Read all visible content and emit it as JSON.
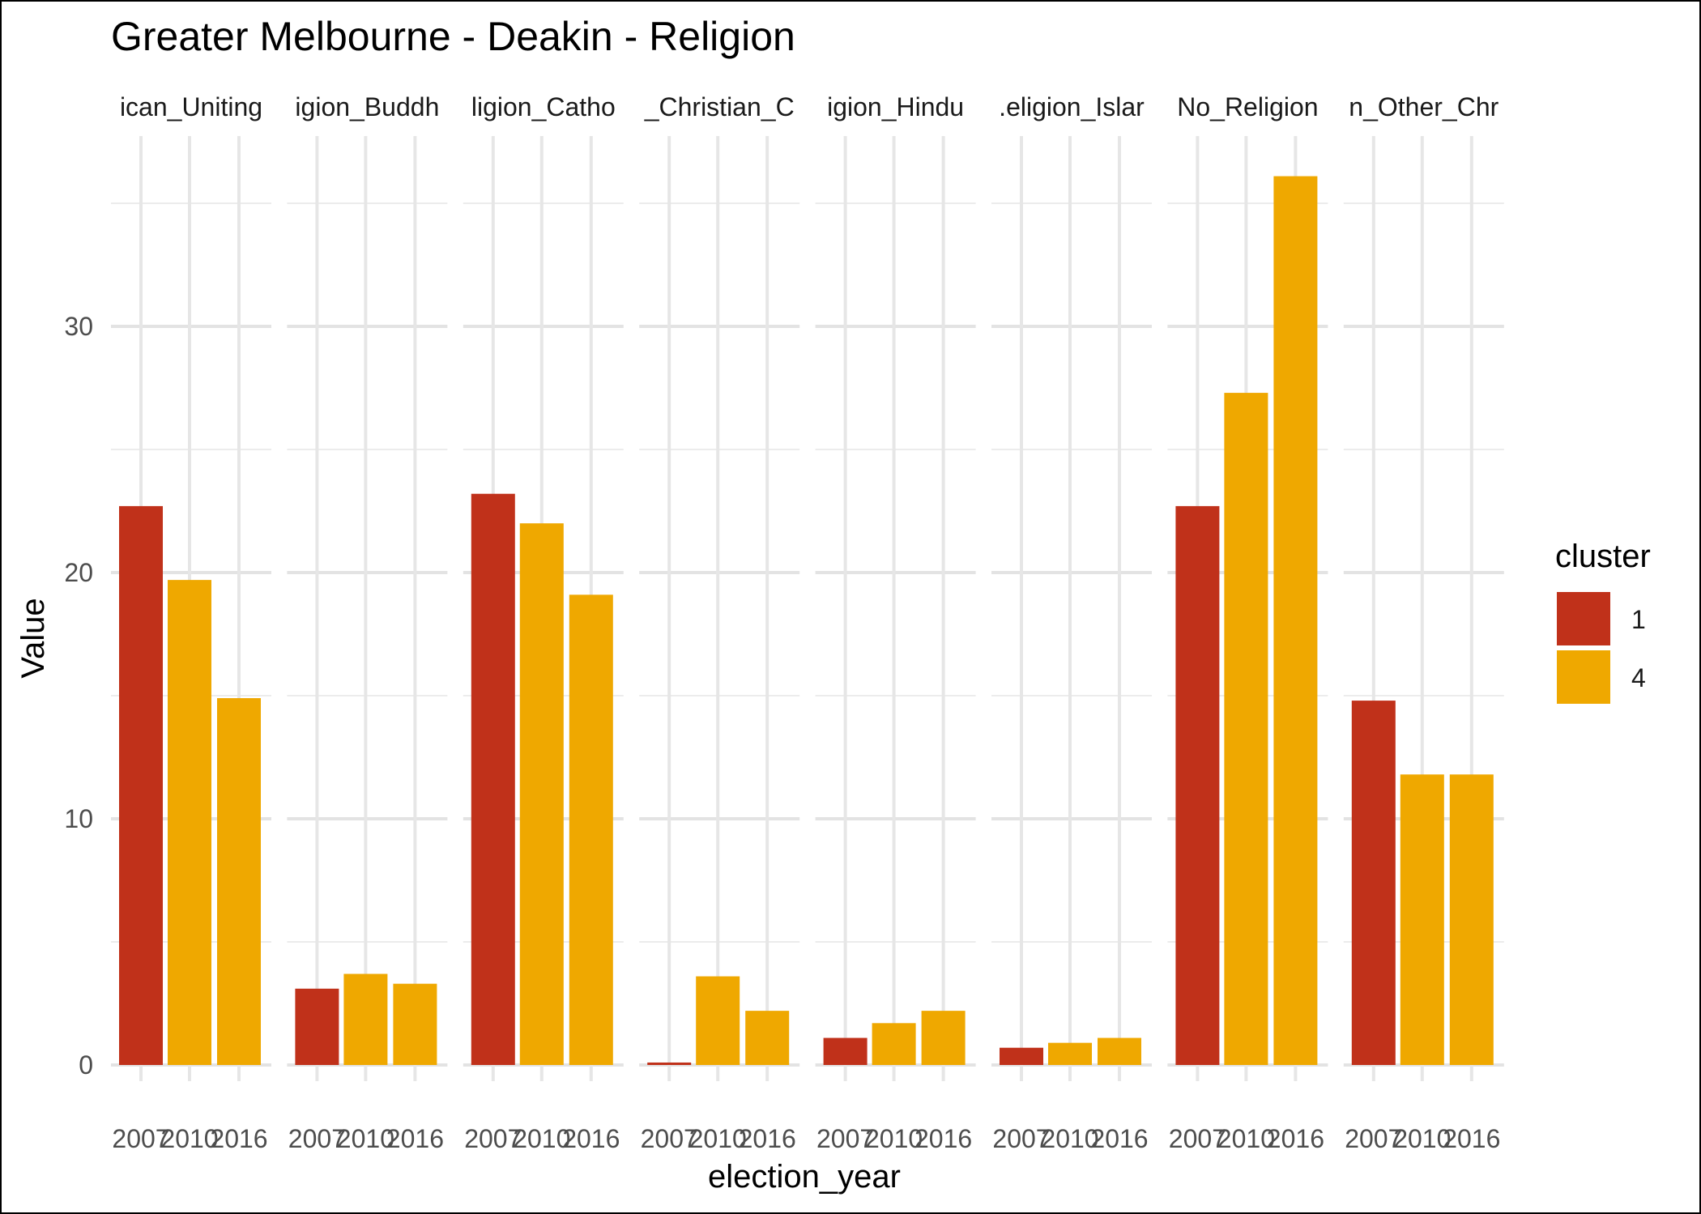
{
  "chart_data": {
    "type": "bar",
    "title": "Greater Melbourne - Deakin - Religion",
    "xlabel": "election_year",
    "ylabel": "Value",
    "facet_labels": [
      "ican_Uniting",
      "igion_Buddh",
      "ligion_Catho",
      "_Christian_C",
      "igion_Hindu",
      ".eligion_Islar",
      "No_Religion",
      "n_Other_Chr"
    ],
    "categories": [
      "2007",
      "2010",
      "2016"
    ],
    "y_ticks": [
      0,
      10,
      20,
      30
    ],
    "ylim": [
      0,
      37
    ],
    "grid": true,
    "legend": {
      "title": "cluster",
      "position": "right",
      "entries": [
        {
          "label": "1",
          "color": "#C0311A"
        },
        {
          "label": "4",
          "color": "#EFA800"
        }
      ]
    },
    "bar_clusters": [
      "1",
      "4",
      "4"
    ],
    "facets": [
      {
        "values": [
          22.7,
          19.7,
          14.9
        ]
      },
      {
        "values": [
          3.1,
          3.7,
          3.3
        ]
      },
      {
        "values": [
          23.2,
          22.0,
          19.1
        ]
      },
      {
        "values": [
          0.1,
          3.6,
          2.2
        ]
      },
      {
        "values": [
          1.1,
          1.7,
          2.2
        ]
      },
      {
        "values": [
          0.7,
          0.9,
          1.1
        ]
      },
      {
        "values": [
          22.7,
          27.3,
          36.1
        ]
      },
      {
        "values": [
          14.8,
          11.8,
          11.8
        ]
      }
    ]
  }
}
